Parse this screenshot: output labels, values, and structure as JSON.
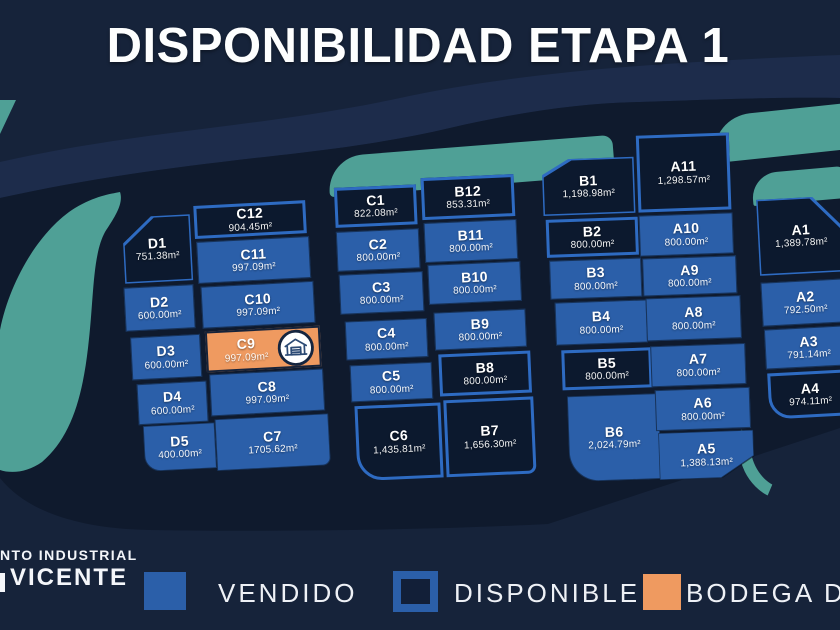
{
  "title": "DISPONIBILIDAD ETAPA 1",
  "logo": {
    "line1": "NTO INDUSTRIAL",
    "line2": "VICENTE"
  },
  "legend": {
    "vendido": "VENDIDO",
    "disponible": "DISPONIBLE",
    "bodega": "BODEGA DISP"
  },
  "colors": {
    "background": "#16233a",
    "map": "#0f1a2d",
    "vendido_fill": "#2b5fa9",
    "disponible_fill": "#0c192e",
    "disponible_border": "#2e6bc2",
    "bodega_fill": "#ef9a60",
    "green_area": "#4fa096",
    "text": "#ffffff"
  },
  "lots": [
    {
      "id": "D1",
      "area": "751.38m²",
      "status": "disponible"
    },
    {
      "id": "D2",
      "area": "600.00m²",
      "status": "vendido"
    },
    {
      "id": "D3",
      "area": "600.00m²",
      "status": "vendido"
    },
    {
      "id": "D4",
      "area": "600.00m²",
      "status": "vendido"
    },
    {
      "id": "D5",
      "area": "400.00m²",
      "status": "vendido"
    },
    {
      "id": "C12",
      "area": "904.45m²",
      "status": "disponible"
    },
    {
      "id": "C11",
      "area": "997.09m²",
      "status": "vendido"
    },
    {
      "id": "C10",
      "area": "997.09m²",
      "status": "vendido"
    },
    {
      "id": "C9",
      "area": "997.09m²",
      "status": "bodega",
      "icon": "warehouse"
    },
    {
      "id": "C8",
      "area": "997.09m²",
      "status": "vendido"
    },
    {
      "id": "C7",
      "area": "1705.62m²",
      "status": "vendido"
    },
    {
      "id": "C1",
      "area": "822.08m²",
      "status": "disponible"
    },
    {
      "id": "C2",
      "area": "800.00m²",
      "status": "vendido"
    },
    {
      "id": "C3",
      "area": "800.00m²",
      "status": "vendido"
    },
    {
      "id": "C4",
      "area": "800.00m²",
      "status": "vendido"
    },
    {
      "id": "C5",
      "area": "800.00m²",
      "status": "vendido"
    },
    {
      "id": "C6",
      "area": "1,435.81m²",
      "status": "disponible"
    },
    {
      "id": "B12",
      "area": "853.31m²",
      "status": "disponible"
    },
    {
      "id": "B11",
      "area": "800.00m²",
      "status": "vendido"
    },
    {
      "id": "B10",
      "area": "800.00m²",
      "status": "vendido"
    },
    {
      "id": "B9",
      "area": "800.00m²",
      "status": "vendido"
    },
    {
      "id": "B8",
      "area": "800.00m²",
      "status": "disponible"
    },
    {
      "id": "B7",
      "area": "1,656.30m²",
      "status": "disponible"
    },
    {
      "id": "B1",
      "area": "1,198.98m²",
      "status": "disponible"
    },
    {
      "id": "B2",
      "area": "800.00m²",
      "status": "disponible"
    },
    {
      "id": "B3",
      "area": "800.00m²",
      "status": "vendido"
    },
    {
      "id": "B4",
      "area": "800.00m²",
      "status": "vendido"
    },
    {
      "id": "B5",
      "area": "800.00m²",
      "status": "disponible"
    },
    {
      "id": "B6",
      "area": "2,024.79m²",
      "status": "vendido"
    },
    {
      "id": "A11",
      "area": "1,298.57m²",
      "status": "disponible"
    },
    {
      "id": "A10",
      "area": "800.00m²",
      "status": "vendido"
    },
    {
      "id": "A9",
      "area": "800.00m²",
      "status": "vendido"
    },
    {
      "id": "A8",
      "area": "800.00m²",
      "status": "vendido"
    },
    {
      "id": "A7",
      "area": "800.00m²",
      "status": "vendido"
    },
    {
      "id": "A6",
      "area": "800.00m²",
      "status": "vendido"
    },
    {
      "id": "A5",
      "area": "1,388.13m²",
      "status": "vendido"
    },
    {
      "id": "A1",
      "area": "1,389.78m²",
      "status": "disponible"
    },
    {
      "id": "A2",
      "area": "792.50m²",
      "status": "vendido"
    },
    {
      "id": "A3",
      "area": "791.14m²",
      "status": "vendido"
    },
    {
      "id": "A4",
      "area": "974.11m²",
      "status": "disponible"
    }
  ]
}
